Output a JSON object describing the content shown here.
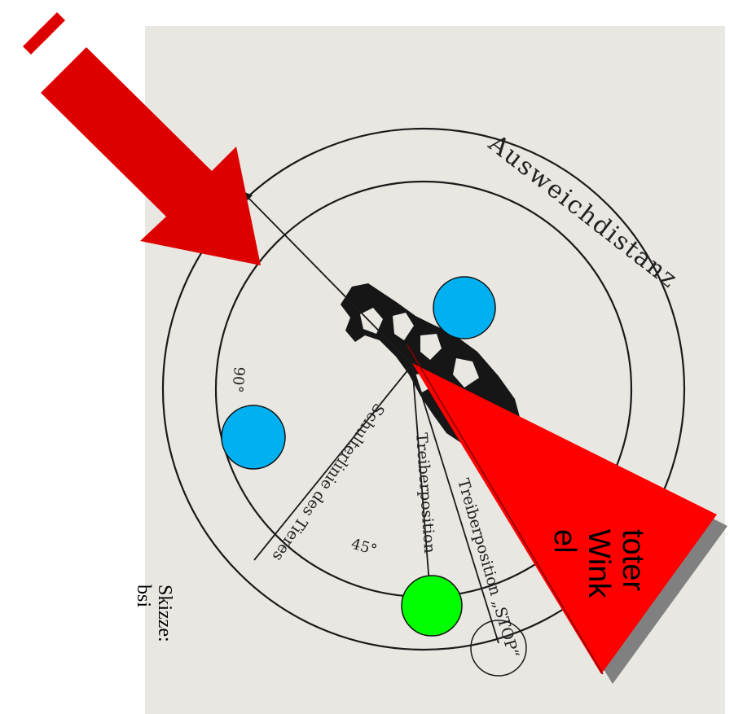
{
  "diagram": {
    "ring_label": "Ausweichdistanz",
    "shoulder_line_label": "Schulterlinie des Tieres",
    "driver_position_label": "Treiberposition",
    "driver_position_stop_label": "Treiberposition „STOP“",
    "angle_90_label": "90°",
    "angle_45_label": "45°",
    "dead_angle_label_lines": [
      "toter",
      "Wink",
      "el"
    ],
    "sketch_credit_lines": [
      "Skizze:",
      "bsi"
    ]
  },
  "colors": {
    "paper": "#e9e7e2",
    "arrow": "#dd0000",
    "dead_angle": "#ff0000",
    "dead_angle_shadow": "#808080",
    "marker_blue": "#00b0f0",
    "marker_green": "#00ff00",
    "ink": "#1a1a1a"
  }
}
